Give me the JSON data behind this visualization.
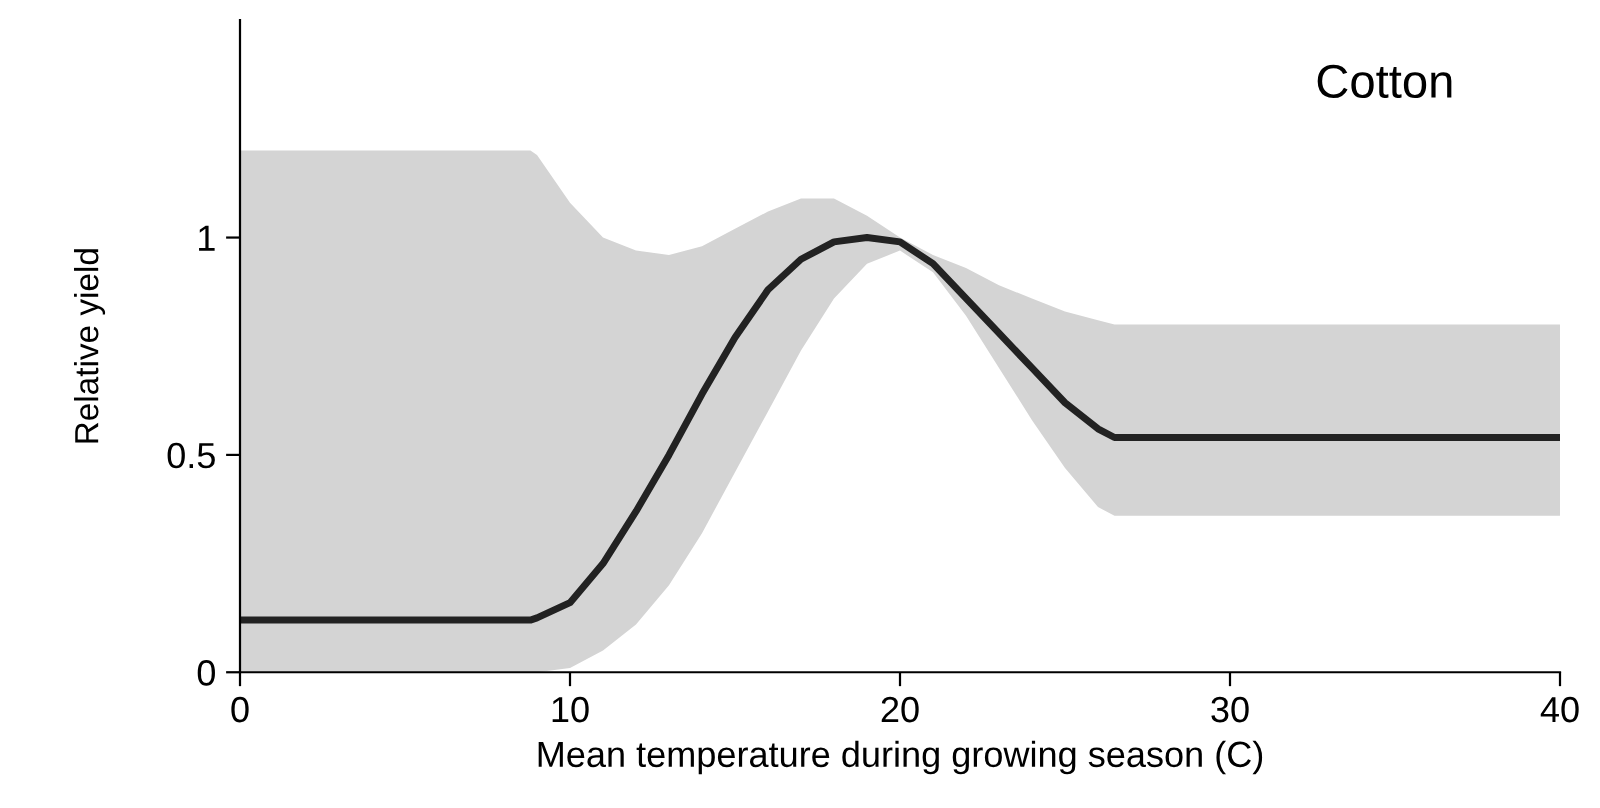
{
  "chart_data": {
    "type": "line",
    "xlabel": "Mean temperature during growing season (C)",
    "ylabel": "Relative yield",
    "annotations": [
      "Cotton"
    ],
    "x": [
      0,
      8.8,
      9,
      10,
      11,
      12,
      13,
      14,
      15,
      16,
      17,
      18,
      19,
      20,
      21,
      22,
      23,
      24,
      25,
      26,
      26.5,
      40
    ],
    "series": [
      {
        "color": "#222222",
        "values": [
          0.12,
          0.12,
          0.125,
          0.16,
          0.25,
          0.37,
          0.5,
          0.64,
          0.77,
          0.88,
          0.95,
          0.99,
          1.0,
          0.99,
          0.94,
          0.86,
          0.78,
          0.7,
          0.62,
          0.56,
          0.54,
          0.54
        ],
        "upper": [
          1.2,
          1.2,
          1.19,
          1.08,
          1.0,
          0.97,
          0.96,
          0.98,
          1.02,
          1.06,
          1.09,
          1.09,
          1.05,
          1.0,
          0.96,
          0.93,
          0.89,
          0.86,
          0.83,
          0.81,
          0.8,
          0.8
        ],
        "lower": [
          0,
          0,
          0,
          0.01,
          0.05,
          0.11,
          0.2,
          0.32,
          0.46,
          0.6,
          0.74,
          0.86,
          0.94,
          0.97,
          0.92,
          0.82,
          0.7,
          0.58,
          0.47,
          0.38,
          0.36,
          0.36
        ]
      }
    ],
    "xlim": [
      0,
      40
    ],
    "xticks": [
      0,
      10,
      20,
      30,
      40
    ],
    "ylim": [
      0,
      1.5
    ],
    "yticks": [
      0,
      0.5,
      1
    ],
    "grid": false,
    "legend": false,
    "line_style": "solid",
    "marker": "none"
  }
}
